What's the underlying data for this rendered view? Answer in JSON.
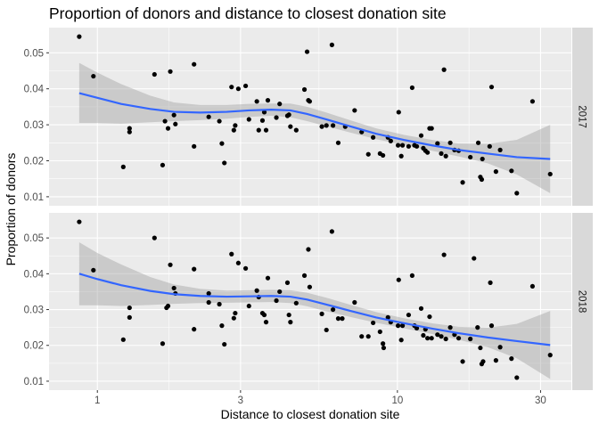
{
  "chart_data": {
    "type": "scatter",
    "title": "Proportion of  donors and distance to closest donation site",
    "xlabel": "Distance to closest donation site",
    "ylabel": "Proportion of donors",
    "x_scale": "log10",
    "x_ticks": [
      1,
      3,
      10,
      30
    ],
    "x_tick_labels": [
      "1",
      "3",
      "10",
      "30"
    ],
    "y_ticks": [
      0.01,
      0.02,
      0.03,
      0.04,
      0.05
    ],
    "y_tick_labels": [
      "0.01",
      "0.02",
      "0.03",
      "0.04",
      "0.05"
    ],
    "xlim": [
      0.69,
      38
    ],
    "ylim": [
      0.0075,
      0.057
    ],
    "grid": true,
    "smooth_color": "#3366FF",
    "band_color": "#999999",
    "point_color": "#000000",
    "panel_background": "#EBEBEB",
    "strip_background": "#D9D9D9",
    "facets": [
      {
        "label": "2017",
        "points": [
          [
            0.87,
            0.0545
          ],
          [
            0.97,
            0.0435
          ],
          [
            1.22,
            0.0183
          ],
          [
            1.28,
            0.029
          ],
          [
            1.28,
            0.028
          ],
          [
            1.55,
            0.044
          ],
          [
            1.65,
            0.0188
          ],
          [
            1.68,
            0.031
          ],
          [
            1.72,
            0.029
          ],
          [
            1.75,
            0.0448
          ],
          [
            1.8,
            0.0327
          ],
          [
            1.82,
            0.0302
          ],
          [
            2.1,
            0.0468
          ],
          [
            2.1,
            0.024
          ],
          [
            2.35,
            0.0322
          ],
          [
            2.55,
            0.031
          ],
          [
            2.6,
            0.0248
          ],
          [
            2.65,
            0.0194
          ],
          [
            2.8,
            0.0405
          ],
          [
            2.85,
            0.0285
          ],
          [
            2.88,
            0.0298
          ],
          [
            2.95,
            0.04
          ],
          [
            3.12,
            0.0408
          ],
          [
            3.2,
            0.0315
          ],
          [
            3.4,
            0.0365
          ],
          [
            3.45,
            0.0285
          ],
          [
            3.55,
            0.0312
          ],
          [
            3.6,
            0.0335
          ],
          [
            3.65,
            0.0285
          ],
          [
            3.7,
            0.0368
          ],
          [
            3.95,
            0.032
          ],
          [
            4.05,
            0.0358
          ],
          [
            4.3,
            0.0325
          ],
          [
            4.35,
            0.0328
          ],
          [
            4.4,
            0.0295
          ],
          [
            4.6,
            0.0285
          ],
          [
            4.9,
            0.0398
          ],
          [
            5.05,
            0.0368
          ],
          [
            5.0,
            0.0503
          ],
          [
            5.1,
            0.0365
          ],
          [
            5.6,
            0.0295
          ],
          [
            5.8,
            0.0298
          ],
          [
            6.05,
            0.0522
          ],
          [
            6.1,
            0.0298
          ],
          [
            6.35,
            0.025
          ],
          [
            6.7,
            0.0295
          ],
          [
            7.2,
            0.034
          ],
          [
            7.6,
            0.028
          ],
          [
            8.0,
            0.0218
          ],
          [
            8.3,
            0.0265
          ],
          [
            8.75,
            0.022
          ],
          [
            8.95,
            0.0215
          ],
          [
            9.3,
            0.0265
          ],
          [
            9.5,
            0.0255
          ],
          [
            10.05,
            0.0243
          ],
          [
            10.1,
            0.0335
          ],
          [
            10.3,
            0.0213
          ],
          [
            10.4,
            0.0243
          ],
          [
            10.9,
            0.024
          ],
          [
            11.2,
            0.0403
          ],
          [
            11.4,
            0.0243
          ],
          [
            11.6,
            0.024
          ],
          [
            12.0,
            0.027
          ],
          [
            12.2,
            0.0235
          ],
          [
            12.4,
            0.0228
          ],
          [
            12.6,
            0.0223
          ],
          [
            12.8,
            0.029
          ],
          [
            13.0,
            0.029
          ],
          [
            13.6,
            0.0248
          ],
          [
            14.0,
            0.022
          ],
          [
            14.3,
            0.0453
          ],
          [
            14.5,
            0.0213
          ],
          [
            15.0,
            0.025
          ],
          [
            15.5,
            0.023
          ],
          [
            16.0,
            0.0228
          ],
          [
            16.5,
            0.014
          ],
          [
            17.5,
            0.021
          ],
          [
            18.6,
            0.025
          ],
          [
            18.9,
            0.0155
          ],
          [
            19.1,
            0.0148
          ],
          [
            19.2,
            0.0205
          ],
          [
            20.6,
            0.0405
          ],
          [
            20.3,
            0.024
          ],
          [
            21.3,
            0.017
          ],
          [
            22.0,
            0.023
          ],
          [
            24.0,
            0.0172
          ],
          [
            25.0,
            0.011
          ],
          [
            28.2,
            0.0365
          ],
          [
            32.3,
            0.0163
          ]
        ],
        "smooth": [
          [
            0.87,
            0.0388
          ],
          [
            1.0,
            0.0375
          ],
          [
            1.2,
            0.0358
          ],
          [
            1.5,
            0.0344
          ],
          [
            1.8,
            0.0336
          ],
          [
            2.2,
            0.0334
          ],
          [
            2.7,
            0.0336
          ],
          [
            3.2,
            0.034
          ],
          [
            3.8,
            0.0342
          ],
          [
            4.4,
            0.034
          ],
          [
            5.0,
            0.033
          ],
          [
            5.8,
            0.0315
          ],
          [
            7.0,
            0.0295
          ],
          [
            8.5,
            0.0275
          ],
          [
            10.5,
            0.0258
          ],
          [
            13.0,
            0.0243
          ],
          [
            16.0,
            0.023
          ],
          [
            20.0,
            0.022
          ],
          [
            25.0,
            0.021
          ],
          [
            32.3,
            0.0205
          ]
        ],
        "band": [
          [
            0.87,
            0.0305,
            0.0472
          ],
          [
            1.0,
            0.0305,
            0.0445
          ],
          [
            1.2,
            0.0303,
            0.0413
          ],
          [
            1.5,
            0.0307,
            0.0381
          ],
          [
            1.8,
            0.031,
            0.0362
          ],
          [
            2.2,
            0.0313,
            0.0355
          ],
          [
            2.7,
            0.0317,
            0.0355
          ],
          [
            3.2,
            0.0322,
            0.0358
          ],
          [
            3.8,
            0.0325,
            0.0359
          ],
          [
            4.4,
            0.0321,
            0.0359
          ],
          [
            5.0,
            0.031,
            0.035
          ],
          [
            5.8,
            0.0296,
            0.0334
          ],
          [
            7.0,
            0.0278,
            0.0312
          ],
          [
            8.5,
            0.026,
            0.029
          ],
          [
            10.5,
            0.0244,
            0.0272
          ],
          [
            13.0,
            0.0228,
            0.0258
          ],
          [
            16.0,
            0.0212,
            0.0248
          ],
          [
            20.0,
            0.0193,
            0.0247
          ],
          [
            25.0,
            0.0162,
            0.0258
          ],
          [
            32.3,
            0.011,
            0.03
          ]
        ]
      },
      {
        "label": "2018",
        "points": [
          [
            0.87,
            0.0545
          ],
          [
            0.97,
            0.041
          ],
          [
            1.22,
            0.0216
          ],
          [
            1.28,
            0.0278
          ],
          [
            1.28,
            0.0305
          ],
          [
            1.55,
            0.05
          ],
          [
            1.65,
            0.0205
          ],
          [
            1.7,
            0.0305
          ],
          [
            1.72,
            0.031
          ],
          [
            1.75,
            0.0425
          ],
          [
            1.8,
            0.036
          ],
          [
            1.82,
            0.0345
          ],
          [
            2.1,
            0.0413
          ],
          [
            2.1,
            0.0245
          ],
          [
            2.35,
            0.0345
          ],
          [
            2.35,
            0.032
          ],
          [
            2.55,
            0.0315
          ],
          [
            2.6,
            0.0255
          ],
          [
            2.65,
            0.0203
          ],
          [
            2.8,
            0.0455
          ],
          [
            2.85,
            0.0276
          ],
          [
            2.88,
            0.029
          ],
          [
            2.95,
            0.043
          ],
          [
            3.12,
            0.0415
          ],
          [
            3.2,
            0.031
          ],
          [
            3.4,
            0.0353
          ],
          [
            3.45,
            0.0335
          ],
          [
            3.55,
            0.029
          ],
          [
            3.6,
            0.0285
          ],
          [
            3.65,
            0.0265
          ],
          [
            3.7,
            0.0388
          ],
          [
            3.95,
            0.0325
          ],
          [
            4.05,
            0.035
          ],
          [
            4.3,
            0.0375
          ],
          [
            4.35,
            0.0285
          ],
          [
            4.4,
            0.0265
          ],
          [
            4.6,
            0.0318
          ],
          [
            4.9,
            0.0395
          ],
          [
            5.05,
            0.0468
          ],
          [
            5.1,
            0.0363
          ],
          [
            5.6,
            0.0288
          ],
          [
            5.8,
            0.0243
          ],
          [
            6.05,
            0.0518
          ],
          [
            6.1,
            0.03
          ],
          [
            6.35,
            0.0275
          ],
          [
            6.55,
            0.0275
          ],
          [
            7.2,
            0.032
          ],
          [
            7.6,
            0.0225
          ],
          [
            8.0,
            0.0225
          ],
          [
            8.3,
            0.0263
          ],
          [
            8.75,
            0.0238
          ],
          [
            8.95,
            0.0205
          ],
          [
            9.0,
            0.0193
          ],
          [
            9.3,
            0.0278
          ],
          [
            9.5,
            0.0265
          ],
          [
            10.05,
            0.0255
          ],
          [
            10.1,
            0.0383
          ],
          [
            10.3,
            0.0215
          ],
          [
            10.4,
            0.0255
          ],
          [
            10.9,
            0.0285
          ],
          [
            11.2,
            0.0395
          ],
          [
            11.4,
            0.0255
          ],
          [
            11.6,
            0.0248
          ],
          [
            12.0,
            0.0303
          ],
          [
            12.2,
            0.0228
          ],
          [
            12.4,
            0.0245
          ],
          [
            12.6,
            0.022
          ],
          [
            12.8,
            0.028
          ],
          [
            13.0,
            0.022
          ],
          [
            13.6,
            0.023
          ],
          [
            14.0,
            0.0225
          ],
          [
            14.3,
            0.0453
          ],
          [
            14.5,
            0.0218
          ],
          [
            15.0,
            0.025
          ],
          [
            15.5,
            0.023
          ],
          [
            16.0,
            0.022
          ],
          [
            16.5,
            0.0155
          ],
          [
            17.5,
            0.0218
          ],
          [
            18.0,
            0.0443
          ],
          [
            18.5,
            0.025
          ],
          [
            18.9,
            0.0193
          ],
          [
            19.1,
            0.0148
          ],
          [
            19.3,
            0.0155
          ],
          [
            20.4,
            0.0375
          ],
          [
            20.6,
            0.0255
          ],
          [
            21.3,
            0.0158
          ],
          [
            22.0,
            0.0195
          ],
          [
            24.0,
            0.0163
          ],
          [
            25.0,
            0.011
          ],
          [
            28.2,
            0.0365
          ],
          [
            32.3,
            0.0173
          ]
        ],
        "smooth": [
          [
            0.87,
            0.04
          ],
          [
            1.0,
            0.0385
          ],
          [
            1.2,
            0.0368
          ],
          [
            1.5,
            0.0352
          ],
          [
            1.8,
            0.0343
          ],
          [
            2.2,
            0.0338
          ],
          [
            2.7,
            0.0336
          ],
          [
            3.2,
            0.0337
          ],
          [
            3.8,
            0.0338
          ],
          [
            4.4,
            0.0336
          ],
          [
            5.0,
            0.0328
          ],
          [
            5.8,
            0.0314
          ],
          [
            7.0,
            0.0296
          ],
          [
            8.5,
            0.0278
          ],
          [
            10.5,
            0.0262
          ],
          [
            13.0,
            0.0247
          ],
          [
            16.0,
            0.0234
          ],
          [
            20.0,
            0.0222
          ],
          [
            25.0,
            0.0212
          ],
          [
            32.3,
            0.0201
          ]
        ],
        "band": [
          [
            0.87,
            0.0312,
            0.0488
          ],
          [
            1.0,
            0.0312,
            0.0458
          ],
          [
            1.2,
            0.031,
            0.0426
          ],
          [
            1.5,
            0.0313,
            0.0391
          ],
          [
            1.8,
            0.0316,
            0.037
          ],
          [
            2.2,
            0.0318,
            0.0358
          ],
          [
            2.7,
            0.0319,
            0.0353
          ],
          [
            3.2,
            0.032,
            0.0354
          ],
          [
            3.8,
            0.0321,
            0.0355
          ],
          [
            4.4,
            0.0318,
            0.0354
          ],
          [
            5.0,
            0.0309,
            0.0347
          ],
          [
            5.8,
            0.0295,
            0.0333
          ],
          [
            7.0,
            0.0279,
            0.0313
          ],
          [
            8.5,
            0.0263,
            0.0293
          ],
          [
            10.5,
            0.0248,
            0.0276
          ],
          [
            13.0,
            0.0232,
            0.0262
          ],
          [
            16.0,
            0.0216,
            0.0252
          ],
          [
            20.0,
            0.0195,
            0.0249
          ],
          [
            25.0,
            0.0164,
            0.026
          ],
          [
            32.3,
            0.0106,
            0.0296
          ]
        ]
      }
    ]
  }
}
